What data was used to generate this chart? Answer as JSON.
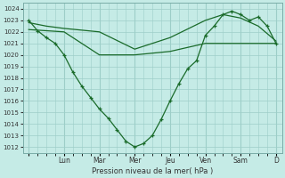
{
  "xlabel": "Pression niveau de la mer( hPa )",
  "background_color": "#c5ebe6",
  "grid_color": "#9dcec8",
  "line_color": "#1a6b2a",
  "ylim": [
    1011.5,
    1024.5
  ],
  "yticks": [
    1012,
    1013,
    1014,
    1015,
    1016,
    1017,
    1018,
    1019,
    1020,
    1021,
    1022,
    1023,
    1024
  ],
  "days": [
    "",
    "Lun",
    "Mar",
    "Mer",
    "Jeu",
    "Ven",
    "Sam",
    "D"
  ],
  "day_positions": [
    0,
    24,
    48,
    72,
    96,
    120,
    144,
    168
  ],
  "series1_x": [
    0,
    6,
    12,
    18,
    24,
    30,
    36,
    42,
    48,
    54,
    60,
    66,
    72,
    78,
    84,
    90,
    96,
    102,
    108,
    114,
    120,
    126,
    132,
    138,
    144,
    150,
    156,
    162,
    168
  ],
  "series1_y": [
    1023.0,
    1022.1,
    1021.5,
    1021.0,
    1020.0,
    1018.5,
    1017.3,
    1016.3,
    1015.3,
    1014.5,
    1013.5,
    1012.5,
    1012.0,
    1012.3,
    1013.0,
    1014.4,
    1016.0,
    1017.5,
    1018.8,
    1019.5,
    1021.7,
    1022.5,
    1023.5,
    1023.8,
    1023.5,
    1023.0,
    1023.3,
    1022.5,
    1021.0
  ],
  "series2_x": [
    0,
    24,
    48,
    72,
    96,
    120,
    144,
    168
  ],
  "series2_y": [
    1022.2,
    1022.0,
    1020.0,
    1020.0,
    1020.3,
    1021.0,
    1021.0,
    1021.0
  ],
  "series3_x": [
    0,
    12,
    24,
    48,
    72,
    96,
    120,
    132,
    144,
    156,
    168
  ],
  "series3_y": [
    1022.8,
    1022.5,
    1022.3,
    1022.0,
    1020.5,
    1021.5,
    1023.0,
    1023.5,
    1023.2,
    1022.5,
    1021.2
  ]
}
